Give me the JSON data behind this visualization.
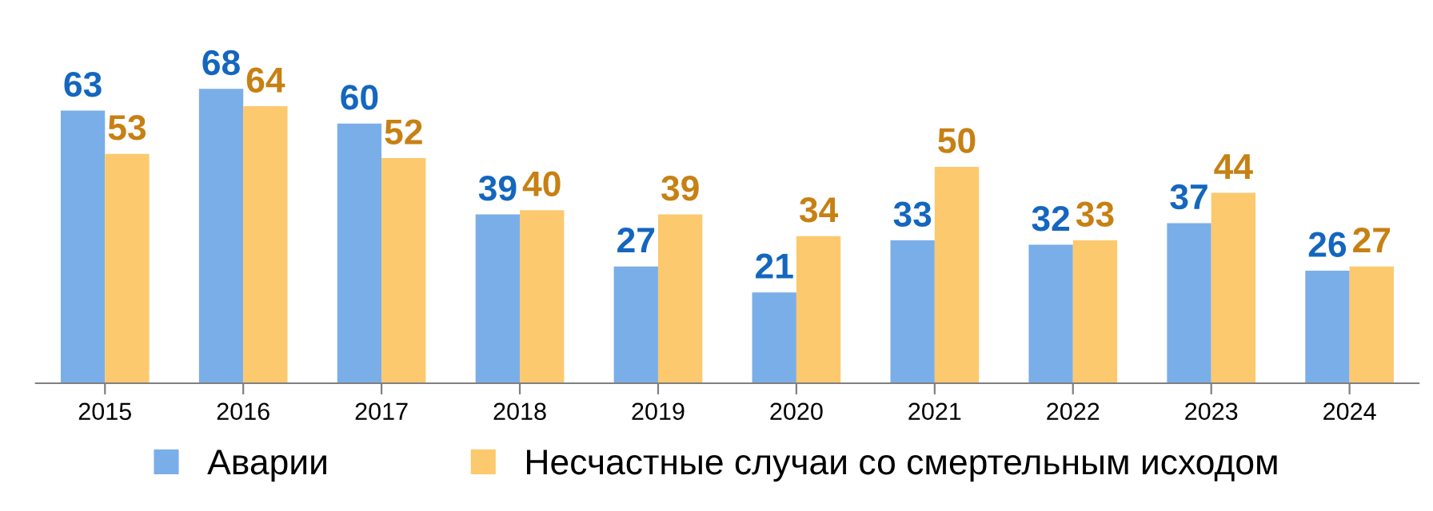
{
  "chart_data": {
    "type": "bar",
    "categories": [
      "2015",
      "2016",
      "2017",
      "2018",
      "2019",
      "2020",
      "2021",
      "2022",
      "2023",
      "2024"
    ],
    "series": [
      {
        "name": "Аварии",
        "color": "#7aaee8",
        "values": [
          63,
          68,
          60,
          39,
          27,
          21,
          33,
          32,
          37,
          26
        ]
      },
      {
        "name": "Несчастные случаи со смертельным исходом",
        "color": "#fcc96e",
        "values": [
          53,
          64,
          52,
          40,
          39,
          34,
          50,
          33,
          44,
          27
        ]
      }
    ],
    "data_labels": true,
    "legend": "bottom",
    "grid": false
  }
}
